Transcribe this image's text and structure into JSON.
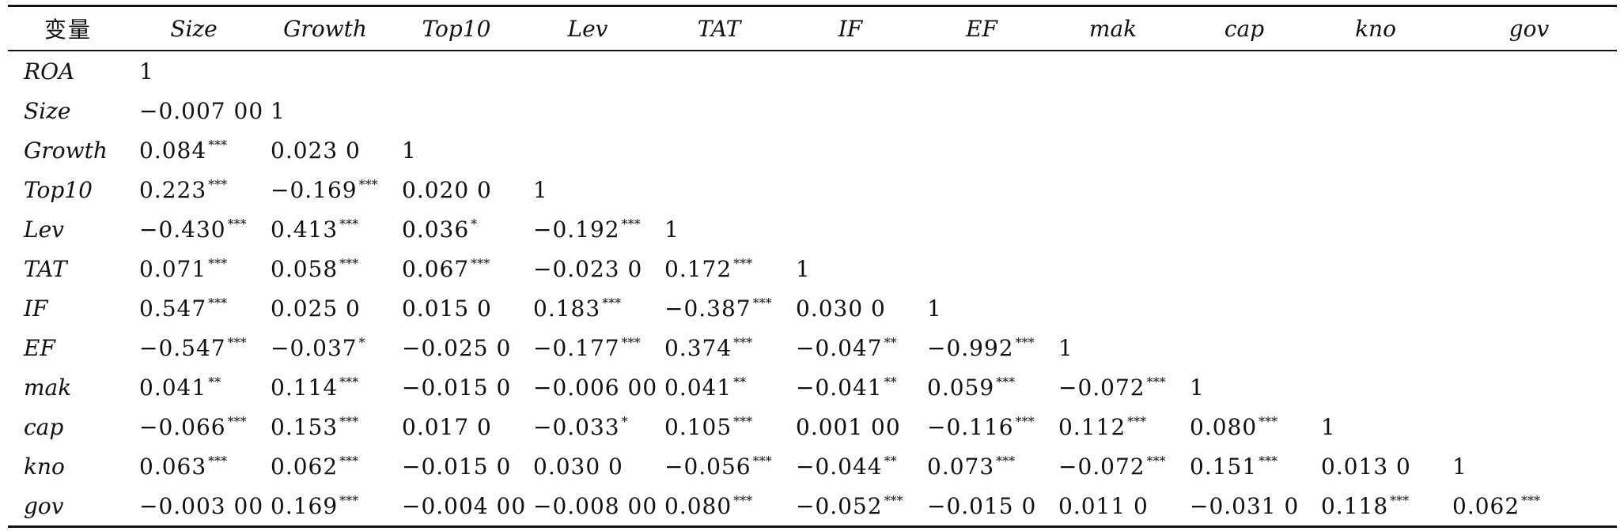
{
  "table": {
    "headers": [
      "变量",
      "Size",
      "Growth",
      "Top10",
      "Lev",
      "TAT",
      "IF",
      "EF",
      "mak",
      "cap",
      "kno",
      "gov"
    ],
    "rows": [
      {
        "label": "ROA",
        "cells": [
          {
            "v": "1",
            "s": ""
          }
        ]
      },
      {
        "label": "Size",
        "cells": [
          {
            "v": "−0.007 00",
            "s": ""
          },
          {
            "v": "1",
            "s": ""
          }
        ]
      },
      {
        "label": "Growth",
        "cells": [
          {
            "v": "0.084",
            "s": "***"
          },
          {
            "v": "0.023 0",
            "s": ""
          },
          {
            "v": "1",
            "s": ""
          }
        ]
      },
      {
        "label": "Top10",
        "cells": [
          {
            "v": "0.223",
            "s": "***"
          },
          {
            "v": "−0.169",
            "s": "***"
          },
          {
            "v": "0.020 0",
            "s": ""
          },
          {
            "v": "1",
            "s": ""
          }
        ]
      },
      {
        "label": "Lev",
        "cells": [
          {
            "v": "−0.430",
            "s": "***"
          },
          {
            "v": "0.413",
            "s": "***"
          },
          {
            "v": "0.036",
            "s": "*"
          },
          {
            "v": "−0.192",
            "s": "***"
          },
          {
            "v": "1",
            "s": ""
          }
        ]
      },
      {
        "label": "TAT",
        "cells": [
          {
            "v": "0.071",
            "s": "***"
          },
          {
            "v": "0.058",
            "s": "***"
          },
          {
            "v": "0.067",
            "s": "***"
          },
          {
            "v": "−0.023 0",
            "s": ""
          },
          {
            "v": "0.172",
            "s": "***"
          },
          {
            "v": "1",
            "s": ""
          }
        ]
      },
      {
        "label": "IF",
        "cells": [
          {
            "v": "0.547",
            "s": "***"
          },
          {
            "v": "0.025 0",
            "s": ""
          },
          {
            "v": "0.015 0",
            "s": ""
          },
          {
            "v": "0.183",
            "s": "***"
          },
          {
            "v": "−0.387",
            "s": "***"
          },
          {
            "v": "0.030 0",
            "s": ""
          },
          {
            "v": "1",
            "s": ""
          }
        ]
      },
      {
        "label": "EF",
        "cells": [
          {
            "v": "−0.547",
            "s": "***"
          },
          {
            "v": "−0.037",
            "s": "*"
          },
          {
            "v": "−0.025 0",
            "s": ""
          },
          {
            "v": "−0.177",
            "s": "***"
          },
          {
            "v": "0.374",
            "s": "***"
          },
          {
            "v": "−0.047",
            "s": "**"
          },
          {
            "v": "−0.992",
            "s": "***"
          },
          {
            "v": "1",
            "s": ""
          }
        ]
      },
      {
        "label": "mak",
        "cells": [
          {
            "v": "0.041",
            "s": "**"
          },
          {
            "v": "0.114",
            "s": "***"
          },
          {
            "v": "−0.015 0",
            "s": ""
          },
          {
            "v": "−0.006 00",
            "s": ""
          },
          {
            "v": "0.041",
            "s": "**"
          },
          {
            "v": "−0.041",
            "s": "**"
          },
          {
            "v": "0.059",
            "s": "***"
          },
          {
            "v": "−0.072",
            "s": "***"
          },
          {
            "v": "1",
            "s": ""
          }
        ]
      },
      {
        "label": "cap",
        "cells": [
          {
            "v": "−0.066",
            "s": "***"
          },
          {
            "v": "0.153",
            "s": "***"
          },
          {
            "v": "0.017 0",
            "s": ""
          },
          {
            "v": "−0.033",
            "s": "*"
          },
          {
            "v": "0.105",
            "s": "***"
          },
          {
            "v": "0.001 00",
            "s": ""
          },
          {
            "v": "−0.116",
            "s": "***"
          },
          {
            "v": "0.112",
            "s": "***"
          },
          {
            "v": "0.080",
            "s": "***"
          },
          {
            "v": "1",
            "s": ""
          }
        ]
      },
      {
        "label": "kno",
        "cells": [
          {
            "v": "0.063",
            "s": "***"
          },
          {
            "v": "0.062",
            "s": "***"
          },
          {
            "v": "−0.015 0",
            "s": ""
          },
          {
            "v": "0.030 0",
            "s": ""
          },
          {
            "v": "−0.056",
            "s": "***"
          },
          {
            "v": "−0.044",
            "s": "**"
          },
          {
            "v": "0.073",
            "s": "***"
          },
          {
            "v": "−0.072",
            "s": "***"
          },
          {
            "v": "0.151",
            "s": "***"
          },
          {
            "v": "0.013 0",
            "s": ""
          },
          {
            "v": "1",
            "s": ""
          }
        ]
      },
      {
        "label": "gov",
        "cells": [
          {
            "v": "−0.003 00",
            "s": ""
          },
          {
            "v": "0.169",
            "s": "***"
          },
          {
            "v": "−0.004 00",
            "s": ""
          },
          {
            "v": "−0.008 00",
            "s": ""
          },
          {
            "v": "0.080",
            "s": "***"
          },
          {
            "v": "−0.052",
            "s": "***"
          },
          {
            "v": "−0.015 0",
            "s": ""
          },
          {
            "v": "0.011 0",
            "s": ""
          },
          {
            "v": "−0.031 0",
            "s": ""
          },
          {
            "v": "0.118",
            "s": "***"
          },
          {
            "v": "0.062",
            "s": "***"
          }
        ]
      }
    ]
  }
}
